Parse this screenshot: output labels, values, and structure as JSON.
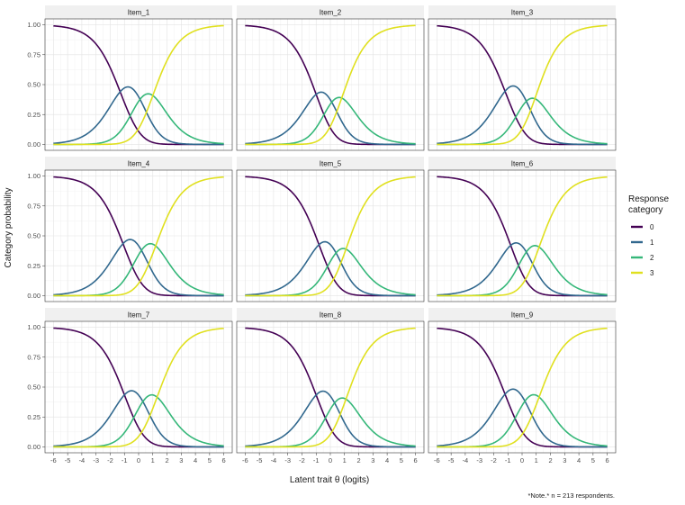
{
  "chart_data": {
    "type": "line",
    "description_of_model": "category probability curves",
    "xlabel": "Latent trait θ (logits)",
    "ylabel": "Category probability",
    "caption": "*Note.* n = 213 respondents.",
    "xlim": [
      -6,
      6
    ],
    "ylim": [
      0,
      1
    ],
    "xticks": [
      -6,
      -5,
      -4,
      -3,
      -2,
      -1,
      0,
      1,
      2,
      3,
      4,
      5,
      6
    ],
    "yticks": [
      "0.00",
      "0.25",
      "0.50",
      "0.75",
      "1.00"
    ],
    "grid": true,
    "legend": {
      "title_lines": [
        "Response",
        "category"
      ],
      "placement": "right",
      "entries": [
        {
          "label": "0",
          "color": "#440154"
        },
        {
          "label": "1",
          "color": "#31688E"
        },
        {
          "label": "2",
          "color": "#35B779"
        },
        {
          "label": "3",
          "color": "#E0E01F"
        }
      ]
    },
    "panels": [
      {
        "title": "Item_1",
        "thresholds": [
          -1.3,
          0.1,
          1.0
        ]
      },
      {
        "title": "Item_2",
        "thresholds": [
          -1.0,
          0.1,
          0.8
        ]
      },
      {
        "title": "Item_3",
        "thresholds": [
          -1.2,
          0.3,
          0.9
        ]
      },
      {
        "title": "Item_4",
        "thresholds": [
          -1.1,
          0.2,
          1.2
        ]
      },
      {
        "title": "Item_5",
        "thresholds": [
          -0.8,
          0.4,
          1.1
        ]
      },
      {
        "title": "Item_6",
        "thresholds": [
          -0.8,
          0.3,
          1.2
        ]
      },
      {
        "title": "Item_7",
        "thresholds": [
          -1.0,
          0.3,
          1.3
        ]
      },
      {
        "title": "Item_8",
        "thresholds": [
          -1.0,
          0.3,
          1.1
        ]
      },
      {
        "title": "Item_9",
        "thresholds": [
          -1.2,
          0.2,
          1.2
        ]
      }
    ]
  }
}
